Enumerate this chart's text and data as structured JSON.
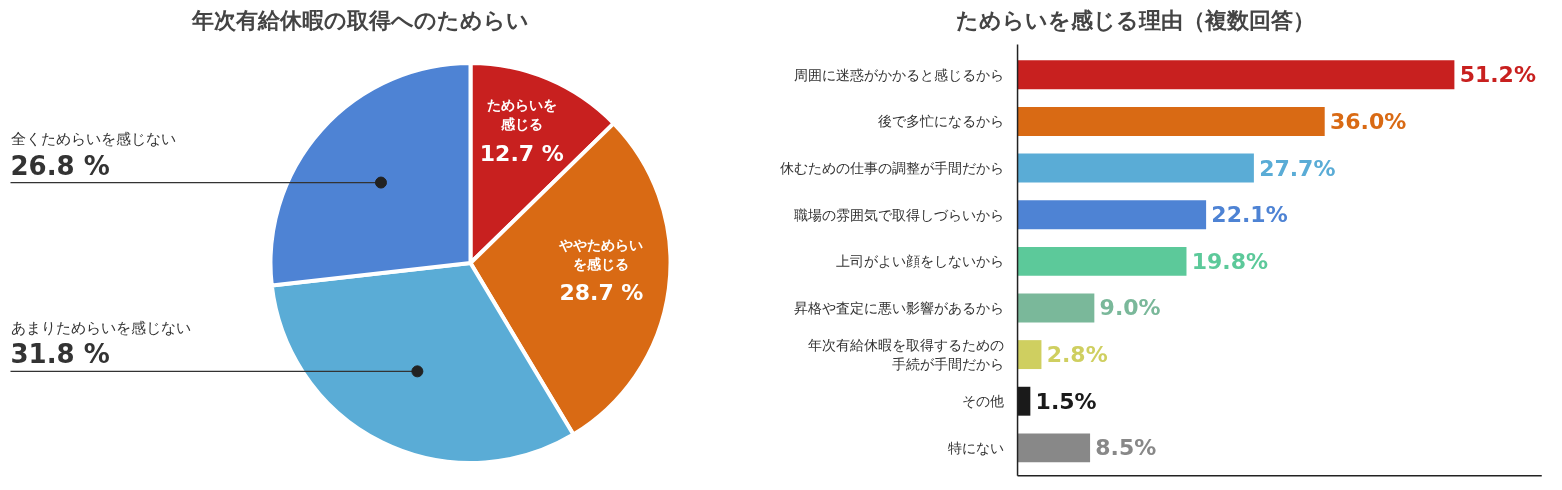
{
  "chart_data": [
    {
      "type": "pie",
      "title": "年次有給休暇の取得へのためらい",
      "categories": [
        "ためらいを感じる",
        "ややためらいを感じる",
        "あまりためらいを感じない",
        "全くためらいを感じない"
      ],
      "values": [
        12.7,
        28.7,
        31.8,
        26.8
      ],
      "value_labels": [
        "12.7 %",
        "28.7 %",
        "31.8 %",
        "26.8 %"
      ],
      "colors": [
        "#c8201f",
        "#d96a14",
        "#5aacd6",
        "#4e83d4"
      ]
    },
    {
      "type": "bar",
      "orientation": "horizontal",
      "title": "ためらいを感じる理由（複数回答）",
      "categories": [
        "周囲に迷惑がかかると感じるから",
        "後で多忙になるから",
        "休むための仕事の調整が手間だから",
        "職場の雰囲気で取得しづらいから",
        "上司がよい顔をしないから",
        "昇格や査定に悪い影響があるから",
        "年次有給休暇を取得するための手続が手間だから",
        "その他",
        "特にない"
      ],
      "values": [
        51.2,
        36.0,
        27.7,
        22.1,
        19.8,
        9.0,
        2.8,
        1.5,
        8.5
      ],
      "value_labels": [
        "51.2%",
        "36.0%",
        "27.7%",
        "22.1%",
        "19.8%",
        "9.0%",
        "2.8%",
        "1.5%",
        "8.5%"
      ],
      "colors": [
        "#c8201f",
        "#d96a14",
        "#5aacd6",
        "#4e83d4",
        "#5cc99a",
        "#7ab89a",
        "#cfcf60",
        "#1a1a1a",
        "#888888"
      ]
    }
  ]
}
